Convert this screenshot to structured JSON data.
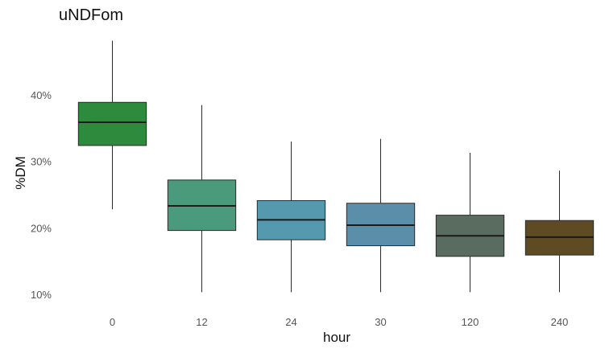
{
  "chart_data": {
    "type": "boxplot",
    "title": "uNDFom",
    "xlabel": "hour",
    "ylabel": "%DM",
    "categories": [
      "0",
      "12",
      "24",
      "30",
      "120",
      "240"
    ],
    "y_ticks": [
      {
        "value": 10,
        "label": "10%"
      },
      {
        "value": 20,
        "label": "20%"
      },
      {
        "value": 30,
        "label": "30%"
      },
      {
        "value": 40,
        "label": "40%"
      }
    ],
    "ylim": [
      9.5,
      48.5
    ],
    "grid": false,
    "legend": "none",
    "boxes": [
      {
        "category": "0",
        "min": 22.8,
        "q1": 32.4,
        "median": 35.9,
        "q3": 38.9,
        "max": 48.2,
        "color": "#2e8b3e"
      },
      {
        "category": "12",
        "min": 10.3,
        "q1": 19.6,
        "median": 23.3,
        "q3": 27.2,
        "max": 38.5,
        "color": "#4a9a7c"
      },
      {
        "category": "24",
        "min": 10.3,
        "q1": 18.2,
        "median": 21.2,
        "q3": 24.1,
        "max": 33.0,
        "color": "#5499ae"
      },
      {
        "category": "30",
        "min": 10.3,
        "q1": 17.3,
        "median": 20.4,
        "q3": 23.7,
        "max": 33.4,
        "color": "#5b8ea8"
      },
      {
        "category": "120",
        "min": 10.3,
        "q1": 15.7,
        "median": 18.8,
        "q3": 21.9,
        "max": 31.3,
        "color": "#5a6b60"
      },
      {
        "category": "240",
        "min": 10.3,
        "q1": 15.9,
        "median": 18.6,
        "q3": 21.1,
        "max": 28.6,
        "color": "#5e4b24"
      }
    ]
  }
}
